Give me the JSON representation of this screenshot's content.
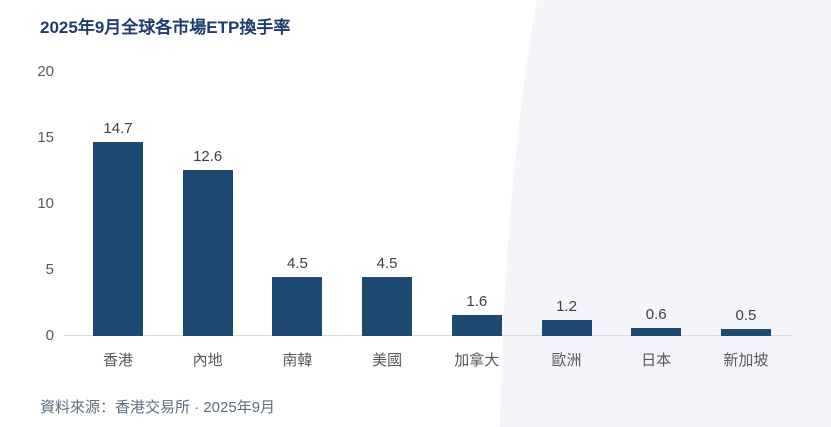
{
  "title": "2025年9月全球各市場ETP換手率",
  "source_note": "資料來源：香港交易所 · 2025年9月",
  "colors": {
    "bar": "#1d4a73",
    "title": "#1f3c6d",
    "value_label": "#404040",
    "tick_label": "#595959",
    "category_label": "#595959",
    "axis_line": "#d9dbde",
    "footer": "#5c6e80",
    "background_panel": "#f4f5f8",
    "page_background": "#ffffff"
  },
  "chart_data": {
    "type": "bar",
    "title": "2025年9月全球各市場ETP換手率",
    "categories": [
      "香港",
      "內地",
      "南韓",
      "美國",
      "加拿大",
      "歐洲",
      "日本",
      "新加坡"
    ],
    "values": [
      14.7,
      12.6,
      4.5,
      4.5,
      1.6,
      1.2,
      0.6,
      0.5
    ],
    "value_labels": [
      "14.7",
      "12.6",
      "4.5",
      "4.5",
      "1.6",
      "1.2",
      "0.6",
      "0.5"
    ],
    "xlabel": "",
    "ylabel": "",
    "ylim": [
      0,
      20
    ],
    "yticks": [
      0,
      5,
      10,
      15,
      20
    ],
    "grid": false,
    "legend": false,
    "source": "資料來源：香港交易所 · 2025年9月"
  }
}
